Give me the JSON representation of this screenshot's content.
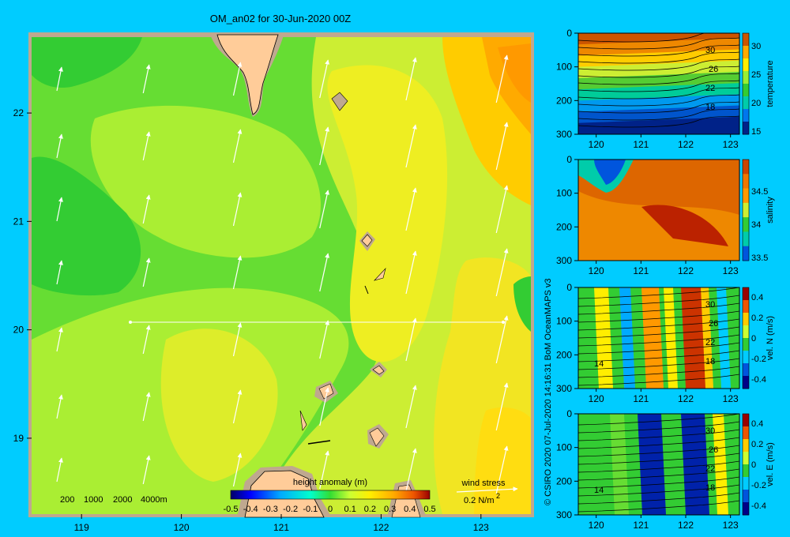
{
  "title": "OM_an02 for 30-Jun-2020 00Z",
  "credit": "© CSIRO 2020  07-Jul-2020 14:16:31 BoM OceanMAPS v3",
  "colors": {
    "background": "#00ccff",
    "land": "#ffcc99",
    "shallow": "#bfa88f"
  },
  "map": {
    "x_ticks": [
      "119",
      "120",
      "121",
      "122",
      "123"
    ],
    "y_ticks": [
      "22",
      "21",
      "20",
      "19"
    ],
    "lon_range": [
      118.5,
      123.5
    ],
    "lat_range": [
      18.3,
      22.7
    ],
    "depth_legend": [
      "200",
      "1000",
      "2000",
      "4000m"
    ],
    "colorbar": {
      "title": "height anomaly (m)",
      "ticks": [
        "-0.5",
        "-0.4",
        "-0.3",
        "-0.2",
        "-0.1",
        "0",
        "0.1",
        "0.2",
        "0.3",
        "0.4",
        "0.5"
      ]
    },
    "wind_stress": {
      "label": "wind stress",
      "scale": "0.2 N/m",
      "superscript": "2"
    }
  },
  "panels": [
    {
      "name": "temperature",
      "label": "temperature",
      "y_ticks": [
        "0",
        "100",
        "200",
        "300"
      ],
      "x_ticks": [
        "120",
        "121",
        "122",
        "123"
      ],
      "cb_ticks": [
        "30",
        "25",
        "20",
        "15"
      ],
      "contour_labels": [
        "30",
        "26",
        "22",
        "18"
      ]
    },
    {
      "name": "salinity",
      "label": "salinity",
      "y_ticks": [
        "0",
        "100",
        "200",
        "300"
      ],
      "x_ticks": [
        "120",
        "121",
        "122",
        "123"
      ],
      "cb_ticks": [
        "34.5",
        "34",
        "33.5"
      ],
      "contour_labels": []
    },
    {
      "name": "vel-n",
      "label": "vel. N (m/s)",
      "y_ticks": [
        "0",
        "100",
        "200",
        "300"
      ],
      "x_ticks": [
        "120",
        "121",
        "122",
        "123"
      ],
      "cb_ticks": [
        "0.4",
        "0.2",
        "0",
        "-0.2",
        "-0.4"
      ],
      "contour_labels": [
        "30",
        "26",
        "22",
        "18",
        "14"
      ]
    },
    {
      "name": "vel-e",
      "label": "vel. E (m/s)",
      "y_ticks": [
        "0",
        "100",
        "200",
        "300"
      ],
      "x_ticks": [
        "120",
        "121",
        "122",
        "123"
      ],
      "cb_ticks": [
        "0.4",
        "0.2",
        "0",
        "-0.2",
        "-0.4"
      ],
      "contour_labels": [
        "30",
        "26",
        "22",
        "18",
        "14"
      ]
    }
  ]
}
